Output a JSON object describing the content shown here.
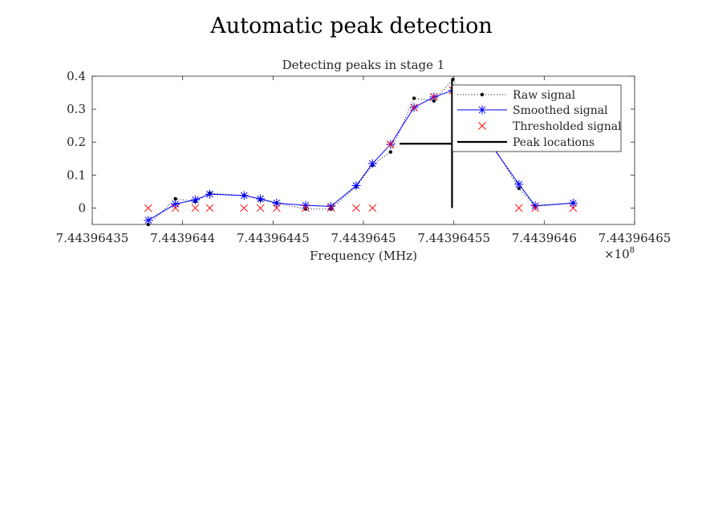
{
  "figure": {
    "title": "Automatic peak detection"
  },
  "chart_data": {
    "type": "line",
    "title": "Detecting peaks in stage 1",
    "xlabel": "Frequency (MHz)",
    "ylabel": "",
    "x_tick_labels": [
      "7.44396435",
      "7.4439644",
      "7.44396445",
      "7.4439645",
      "7.44396455",
      "7.4439646",
      "7.44396465"
    ],
    "x_ticks": [
      7.44396435,
      7.4439644,
      7.44396445,
      7.4439645,
      7.44396455,
      7.4439646,
      7.44396465
    ],
    "x_exponent_label": "×10",
    "x_exponent_power": "8",
    "y_tick_labels": [
      "0",
      "0.1",
      "0.2",
      "0.3",
      "0.4"
    ],
    "y_ticks": [
      0,
      0.1,
      0.2,
      0.3,
      0.4
    ],
    "xlim": [
      7.44396435,
      7.44396465
    ],
    "ylim": [
      -0.05,
      0.4
    ],
    "grid": false,
    "legend_placement": "top-right",
    "series": [
      {
        "name": "Raw signal",
        "style": "dotted-line-dot-markers",
        "color": "#000000",
        "x": [
          7.443964381,
          7.443964396,
          7.443964407,
          7.443964415,
          7.443964434,
          7.443964443,
          7.443964452,
          7.443964468,
          7.443964482,
          7.443964496,
          7.443964505,
          7.443964515,
          7.443964528,
          7.443964539,
          7.4439645495,
          7.443964586,
          7.443964595,
          7.443964616
        ],
        "y": [
          -0.05,
          0.028,
          0.02,
          0.045,
          0.038,
          0.025,
          0.015,
          -0.003,
          -0.003,
          0.065,
          0.13,
          0.17,
          0.333,
          0.325,
          0.39,
          0.06,
          0.005,
          0.015
        ]
      },
      {
        "name": "Smoothed signal",
        "style": "solid-line-asterisk-markers",
        "color": "#0000ff",
        "x": [
          7.443964381,
          7.443964396,
          7.443964407,
          7.443964415,
          7.443964434,
          7.443964443,
          7.443964452,
          7.443964468,
          7.443964482,
          7.443964496,
          7.443964505,
          7.443964515,
          7.443964528,
          7.443964539,
          7.4439645495,
          7.443964586,
          7.443964595,
          7.443964616
        ],
        "y": [
          -0.037,
          0.012,
          0.025,
          0.042,
          0.038,
          0.028,
          0.015,
          0.008,
          0.005,
          0.068,
          0.135,
          0.193,
          0.305,
          0.337,
          0.357,
          0.072,
          0.007,
          0.015
        ]
      },
      {
        "name": "Thresholded signal",
        "style": "x-markers",
        "color": "#ff0000",
        "x": [
          7.443964381,
          7.443964396,
          7.443964407,
          7.443964415,
          7.443964434,
          7.443964443,
          7.443964452,
          7.443964468,
          7.443964482,
          7.443964496,
          7.443964505,
          7.443964515,
          7.443964528,
          7.443964539,
          7.4439645495,
          7.443964586,
          7.443964595,
          7.443964616
        ],
        "y": [
          0,
          0,
          0,
          0,
          0,
          0,
          0,
          0,
          0,
          0,
          0,
          0.193,
          0.305,
          0.337,
          0.357,
          0,
          0,
          0
        ]
      },
      {
        "name": "Peak locations",
        "style": "thick-solid-line",
        "color": "#000000",
        "vertical_line": {
          "x": 7.443964549,
          "y": [
            0,
            0.39
          ]
        },
        "horizontal_line": {
          "x": [
            7.44396452,
            7.443964578
          ],
          "y": 0.195
        }
      }
    ]
  }
}
